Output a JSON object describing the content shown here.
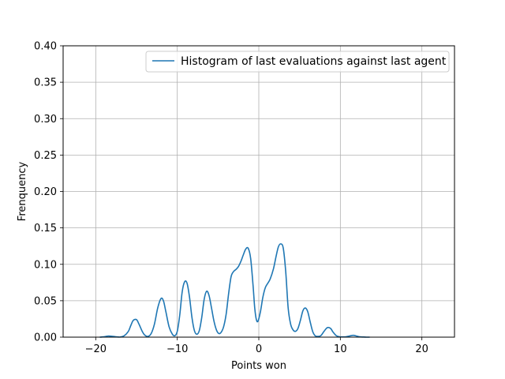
{
  "chart_data": {
    "type": "line",
    "title": "",
    "xlabel": "Points won",
    "ylabel": "Frenquency",
    "xlim": [
      -24,
      24
    ],
    "ylim": [
      0.0,
      0.4
    ],
    "xticks": [
      -20,
      -10,
      0,
      10,
      20
    ],
    "xtick_labels": [
      "−20",
      "−10",
      "0",
      "10",
      "20"
    ],
    "yticks": [
      0.0,
      0.05,
      0.1,
      0.15,
      0.2,
      0.25,
      0.3,
      0.35,
      0.4
    ],
    "ytick_labels": [
      "0.00",
      "0.05",
      "0.10",
      "0.15",
      "0.20",
      "0.25",
      "0.30",
      "0.35",
      "0.40"
    ],
    "grid": true,
    "legend_position": "top-right",
    "series": [
      {
        "name": "Histogram of last evaluations against last agent",
        "color": "#1f77b4",
        "x": [
          -19.5,
          -19.0,
          -18.5,
          -18.0,
          -17.5,
          -17.0,
          -16.5,
          -16.0,
          -15.7,
          -15.4,
          -15.0,
          -14.7,
          -14.3,
          -14.0,
          -13.6,
          -13.2,
          -12.8,
          -12.4,
          -12.0,
          -11.7,
          -11.4,
          -11.0,
          -10.6,
          -10.3,
          -10.0,
          -9.7,
          -9.4,
          -9.1,
          -8.8,
          -8.5,
          -8.2,
          -7.9,
          -7.6,
          -7.3,
          -7.0,
          -6.7,
          -6.4,
          -6.1,
          -5.8,
          -5.5,
          -5.2,
          -4.9,
          -4.6,
          -4.3,
          -4.0,
          -3.7,
          -3.4,
          -3.1,
          -2.8,
          -2.5,
          -2.2,
          -1.9,
          -1.6,
          -1.3,
          -1.0,
          -0.7,
          -0.5,
          -0.3,
          -0.1,
          0.2,
          0.5,
          0.8,
          1.1,
          1.4,
          1.8,
          2.1,
          2.4,
          2.7,
          3.0,
          3.3,
          3.6,
          3.9,
          4.2,
          4.5,
          4.8,
          5.1,
          5.4,
          5.7,
          6.0,
          6.3,
          6.6,
          6.9,
          7.2,
          7.6,
          8.0,
          8.4,
          8.8,
          9.1,
          9.5,
          9.9,
          10.3,
          10.7,
          11.1,
          11.6,
          12.0,
          12.4,
          12.8,
          13.2,
          13.6
        ],
        "y": [
          0.0,
          0.0005,
          0.0015,
          0.0012,
          0.0005,
          0.0002,
          0.002,
          0.008,
          0.016,
          0.023,
          0.024,
          0.018,
          0.008,
          0.003,
          0.001,
          0.005,
          0.018,
          0.04,
          0.053,
          0.05,
          0.035,
          0.014,
          0.004,
          0.002,
          0.008,
          0.03,
          0.062,
          0.076,
          0.074,
          0.055,
          0.027,
          0.009,
          0.004,
          0.009,
          0.027,
          0.052,
          0.063,
          0.057,
          0.04,
          0.022,
          0.01,
          0.005,
          0.007,
          0.015,
          0.032,
          0.06,
          0.083,
          0.09,
          0.093,
          0.097,
          0.104,
          0.113,
          0.121,
          0.122,
          0.108,
          0.07,
          0.04,
          0.024,
          0.022,
          0.035,
          0.055,
          0.068,
          0.074,
          0.08,
          0.094,
          0.11,
          0.124,
          0.128,
          0.122,
          0.09,
          0.04,
          0.018,
          0.01,
          0.008,
          0.012,
          0.023,
          0.036,
          0.04,
          0.035,
          0.021,
          0.008,
          0.002,
          0.001,
          0.002,
          0.008,
          0.013,
          0.012,
          0.007,
          0.002,
          0.0005,
          0.0003,
          0.0005,
          0.0015,
          0.0025,
          0.0015,
          0.0005,
          0.0002,
          0.0,
          0.0
        ]
      }
    ]
  }
}
